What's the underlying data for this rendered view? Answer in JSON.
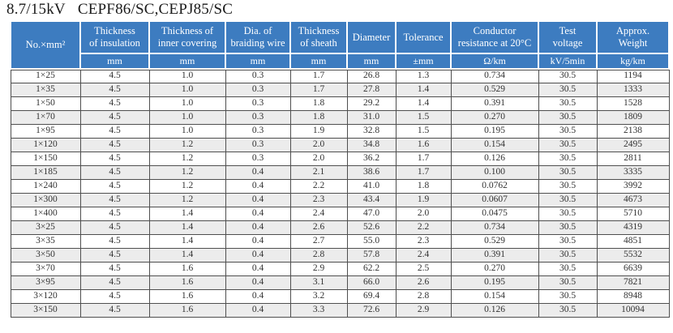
{
  "title": {
    "voltage": "8.7/15kV",
    "models": "CEPF86/SC,CEPJ85/SC"
  },
  "colors": {
    "header_bg": "#3d7cc0",
    "grid_line": "#4f4f4f",
    "row_alt_bg": "#ececec",
    "header_text": "#ffffff",
    "body_text": "#333333"
  },
  "table": {
    "columns": [
      {
        "label": "No.×mm²",
        "unit": null
      },
      {
        "label": "Thickness\nof insulation",
        "unit": "mm"
      },
      {
        "label": "Thickness of\ninner covering",
        "unit": "mm"
      },
      {
        "label": "Dia. of\nbraiding wire",
        "unit": "mm"
      },
      {
        "label": "Thickness\nof sheath",
        "unit": "mm"
      },
      {
        "label": "Diameter",
        "unit": "mm"
      },
      {
        "label": "Tolerance",
        "unit": "±mm"
      },
      {
        "label": "Conductor\nresistance at 20°C",
        "unit": "Ω/km"
      },
      {
        "label": "Test\nvoltage",
        "unit": "kV/5min"
      },
      {
        "label": "Approx.\nWeight",
        "unit": "kg/km"
      }
    ],
    "rows": [
      [
        "1×25",
        "4.5",
        "1.0",
        "0.3",
        "1.7",
        "26.8",
        "1.3",
        "0.734",
        "30.5",
        "1194"
      ],
      [
        "1×35",
        "4.5",
        "1.0",
        "0.3",
        "1.7",
        "27.8",
        "1.4",
        "0.529",
        "30.5",
        "1333"
      ],
      [
        "1×50",
        "4.5",
        "1.0",
        "0.3",
        "1.8",
        "29.2",
        "1.4",
        "0.391",
        "30.5",
        "1528"
      ],
      [
        "1×70",
        "4.5",
        "1.0",
        "0.3",
        "1.8",
        "31.0",
        "1.5",
        "0.270",
        "30.5",
        "1809"
      ],
      [
        "1×95",
        "4.5",
        "1.0",
        "0.3",
        "1.9",
        "32.8",
        "1.5",
        "0.195",
        "30.5",
        "2138"
      ],
      [
        "1×120",
        "4.5",
        "1.2",
        "0.3",
        "2.0",
        "34.8",
        "1.6",
        "0.154",
        "30.5",
        "2495"
      ],
      [
        "1×150",
        "4.5",
        "1.2",
        "0.3",
        "2.0",
        "36.2",
        "1.7",
        "0.126",
        "30.5",
        "2811"
      ],
      [
        "1×185",
        "4.5",
        "1.2",
        "0.4",
        "2.1",
        "38.6",
        "1.7",
        "0.100",
        "30.5",
        "3335"
      ],
      [
        "1×240",
        "4.5",
        "1.2",
        "0.4",
        "2.2",
        "41.0",
        "1.8",
        "0.0762",
        "30.5",
        "3992"
      ],
      [
        "1×300",
        "4.5",
        "1.2",
        "0.4",
        "2.3",
        "43.4",
        "1.9",
        "0.0607",
        "30.5",
        "4673"
      ],
      [
        "1×400",
        "4.5",
        "1.4",
        "0.4",
        "2.4",
        "47.0",
        "2.0",
        "0.0475",
        "30.5",
        "5710"
      ],
      [
        "3×25",
        "4.5",
        "1.4",
        "0.4",
        "2.6",
        "52.6",
        "2.2",
        "0.734",
        "30.5",
        "4319"
      ],
      [
        "3×35",
        "4.5",
        "1.4",
        "0.4",
        "2.7",
        "55.0",
        "2.3",
        "0.529",
        "30.5",
        "4851"
      ],
      [
        "3×50",
        "4.5",
        "1.4",
        "0.4",
        "2.8",
        "57.8",
        "2.4",
        "0.391",
        "30.5",
        "5532"
      ],
      [
        "3×70",
        "4.5",
        "1.6",
        "0.4",
        "2.9",
        "62.2",
        "2.5",
        "0.270",
        "30.5",
        "6639"
      ],
      [
        "3×95",
        "4.5",
        "1.6",
        "0.4",
        "3.1",
        "66.0",
        "2.6",
        "0.195",
        "30.5",
        "7821"
      ],
      [
        "3×120",
        "4.5",
        "1.6",
        "0.4",
        "3.2",
        "69.4",
        "2.8",
        "0.154",
        "30.5",
        "8948"
      ],
      [
        "3×150",
        "4.5",
        "1.6",
        "0.4",
        "3.3",
        "72.6",
        "2.9",
        "0.126",
        "30.5",
        "10094"
      ]
    ]
  }
}
